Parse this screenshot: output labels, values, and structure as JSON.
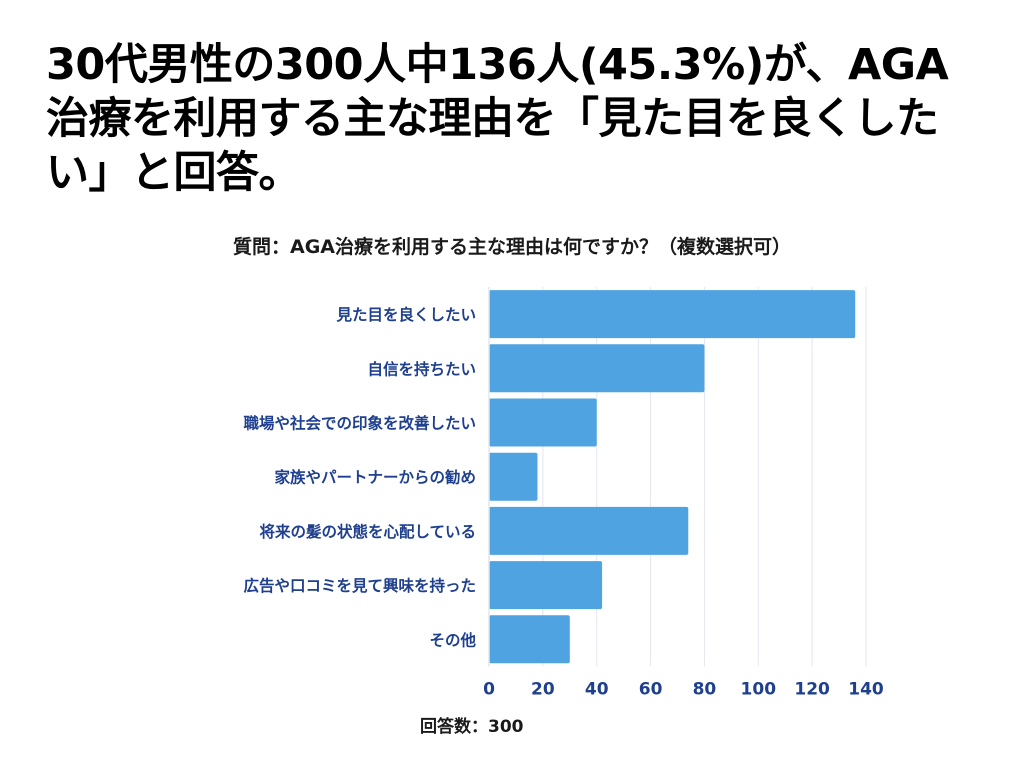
{
  "headline": "30代男性の300人中136人(45.3%)が、AGA治療を利用する主な理由を「見た目を良くしたい」と回答。",
  "footer": {
    "respondents": "回答数：300"
  },
  "colors": {
    "bar": "#4fa3e0",
    "axis_label": "#1f3f8f",
    "grid": "#e3e6ee"
  },
  "chart_data": {
    "type": "bar",
    "orientation": "horizontal",
    "title": "質問：AGA治療を利用する主な理由は何ですか？（複数選択可）",
    "categories": [
      "見た目を良くしたい",
      "自信を持ちたい",
      "職場や社会での印象を改善したい",
      "家族やパートナーからの勧め",
      "将来の髪の状態を心配している",
      "広告や口コミを見て興味を持った",
      "その他"
    ],
    "values": [
      136,
      80,
      40,
      18,
      74,
      42,
      30
    ],
    "xlim": [
      0,
      140
    ],
    "xticks": [
      0,
      20,
      40,
      60,
      80,
      100,
      120,
      140
    ],
    "xlabel": "",
    "ylabel": "",
    "grid": true
  }
}
